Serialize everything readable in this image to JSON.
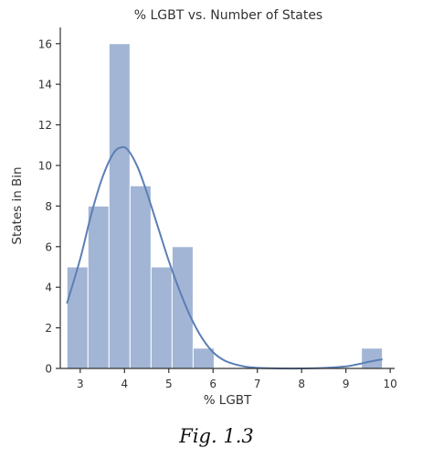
{
  "chart_data": {
    "type": "bar",
    "subtype": "histogram-with-kde",
    "title": "% LGBT vs. Number of States",
    "xlabel": "% LGBT",
    "ylabel": "States in Bin",
    "xlim": [
      2.55,
      10.1
    ],
    "ylim": [
      0,
      16.8
    ],
    "xticks": [
      3,
      4,
      5,
      6,
      7,
      8,
      9,
      10
    ],
    "yticks": [
      0,
      2,
      4,
      6,
      8,
      10,
      12,
      14,
      16
    ],
    "bin_edges": [
      2.7,
      3.175,
      3.65,
      4.125,
      4.6,
      5.075,
      5.55,
      6.025,
      6.5,
      6.975,
      7.45,
      7.925,
      8.4,
      8.875,
      9.35,
      9.825
    ],
    "counts": [
      5,
      8,
      16,
      9,
      5,
      6,
      1,
      0,
      0,
      0,
      0,
      0,
      0,
      0,
      1
    ],
    "kde": {
      "x": [
        2.7,
        3.0,
        3.25,
        3.5,
        3.75,
        3.95,
        4.1,
        4.3,
        4.5,
        4.75,
        5.0,
        5.25,
        5.5,
        5.75,
        6.0,
        6.25,
        6.5,
        6.75,
        7.0,
        7.5,
        8.0,
        8.5,
        9.0,
        9.3,
        9.5,
        9.825
      ],
      "y": [
        3.2,
        5.4,
        7.6,
        9.4,
        10.6,
        10.9,
        10.7,
        9.9,
        8.7,
        7.0,
        5.3,
        3.8,
        2.5,
        1.5,
        0.8,
        0.4,
        0.2,
        0.08,
        0.03,
        0.0,
        0.0,
        0.02,
        0.1,
        0.22,
        0.32,
        0.45
      ]
    },
    "grid": false,
    "colors": {
      "bar_fill": "#a2b5d5",
      "bar_edge": "#ffffff",
      "kde_line": "#5b7fb5",
      "axis": "#333333"
    }
  },
  "caption": "Fig. 1.3"
}
